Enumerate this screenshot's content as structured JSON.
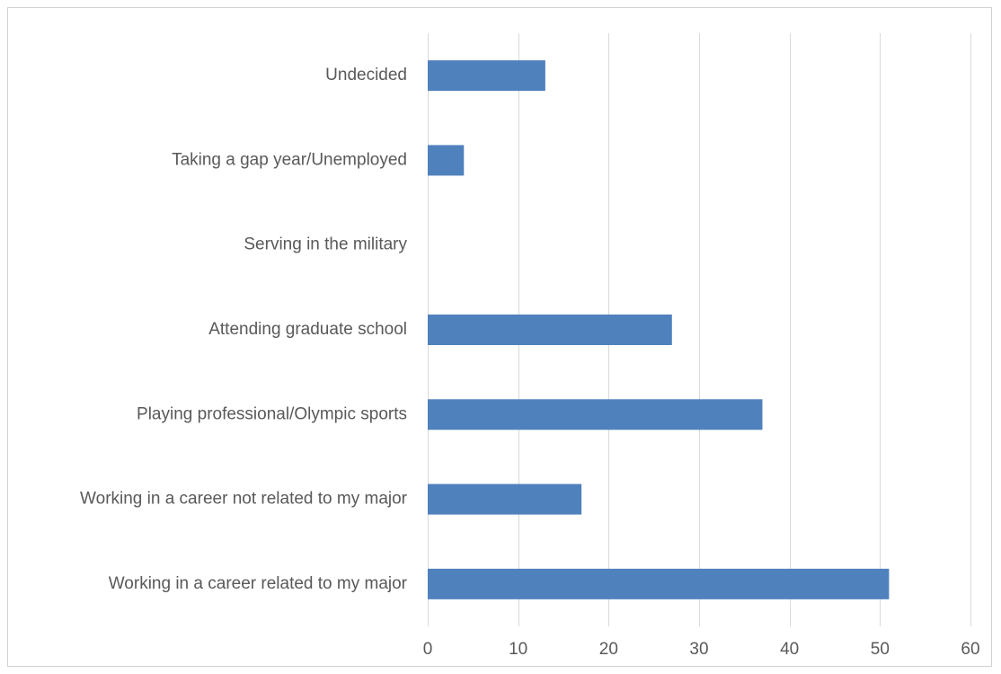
{
  "chart_data": {
    "type": "bar",
    "orientation": "horizontal",
    "categories": [
      "Undecided",
      "Taking a gap year/Unemployed",
      "Serving in the military",
      "Attending graduate school",
      "Playing professional/Olympic sports",
      "Working in a career not related to my major",
      "Working in a career related to my major"
    ],
    "values": [
      13,
      4,
      0,
      27,
      37,
      17,
      51
    ],
    "xlim": [
      0,
      60
    ],
    "xticks": [
      0,
      10,
      20,
      30,
      40,
      50,
      60
    ],
    "grid": "vertical",
    "legend": "none",
    "colors": {
      "bar": "#4f81bd",
      "grid": "#d9d9d9",
      "text": "#595959",
      "border": "#d0d0d0"
    }
  }
}
